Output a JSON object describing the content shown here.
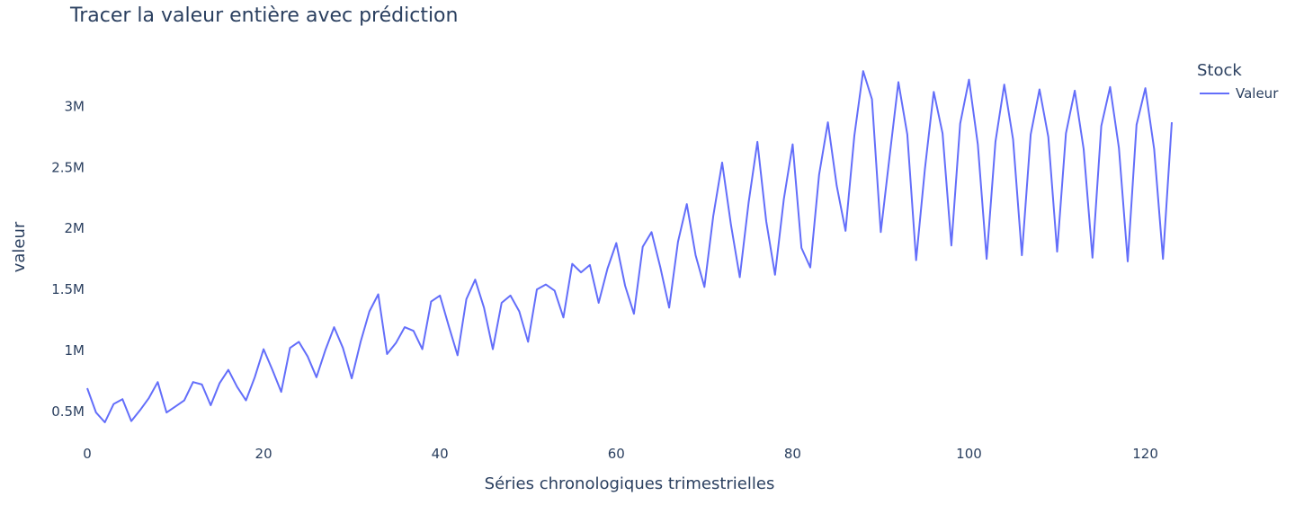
{
  "chart_data": {
    "type": "line",
    "title": "Tracer la valeur entière avec prédiction",
    "xlabel": "Séries chronologiques trimestrielles",
    "ylabel": "valeur",
    "xlim": [
      0,
      123
    ],
    "ylim": [
      270000,
      3350000
    ],
    "grid": false,
    "legend": {
      "title": "Stock",
      "placement": "top-right"
    },
    "x_ticks": [
      0,
      20,
      40,
      60,
      80,
      100,
      120
    ],
    "x_tick_labels": [
      "0",
      "20",
      "40",
      "60",
      "80",
      "100",
      "120"
    ],
    "y_ticks": [
      500000,
      1000000,
      1500000,
      2000000,
      2500000,
      3000000
    ],
    "y_tick_labels": [
      "0.5M",
      "1M",
      "1.5M",
      "2M",
      "2.5M",
      "3M"
    ],
    "series": [
      {
        "name": "Valeur",
        "color": "#636efa",
        "x": [
          0,
          1,
          2,
          3,
          4,
          5,
          6,
          7,
          8,
          9,
          10,
          11,
          12,
          13,
          14,
          15,
          16,
          17,
          18,
          19,
          20,
          21,
          22,
          23,
          24,
          25,
          26,
          27,
          28,
          29,
          30,
          31,
          32,
          33,
          34,
          35,
          36,
          37,
          38,
          39,
          40,
          41,
          42,
          43,
          44,
          45,
          46,
          47,
          48,
          49,
          50,
          51,
          52,
          53,
          54,
          55,
          56,
          57,
          58,
          59,
          60,
          61,
          62,
          63,
          64,
          65,
          66,
          67,
          68,
          69,
          70,
          71,
          72,
          73,
          74,
          75,
          76,
          77,
          78,
          79,
          80,
          81,
          82,
          83,
          84,
          85,
          86,
          87,
          88,
          89,
          90,
          91,
          92,
          93,
          94,
          95,
          96,
          97,
          98,
          99,
          100,
          101,
          102,
          103,
          104,
          105,
          106,
          107,
          108,
          109,
          110,
          111,
          112,
          113,
          114,
          115,
          116,
          117,
          118,
          119,
          120,
          121,
          122,
          123
        ],
        "values": [
          690000,
          490000,
          410000,
          560000,
          600000,
          420000,
          510000,
          610000,
          740000,
          490000,
          540000,
          590000,
          740000,
          720000,
          550000,
          730000,
          840000,
          700000,
          590000,
          780000,
          1010000,
          840000,
          660000,
          1020000,
          1070000,
          950000,
          780000,
          1000000,
          1190000,
          1020000,
          770000,
          1070000,
          1320000,
          1460000,
          970000,
          1060000,
          1190000,
          1160000,
          1010000,
          1400000,
          1450000,
          1200000,
          960000,
          1420000,
          1580000,
          1350000,
          1010000,
          1390000,
          1450000,
          1320000,
          1070000,
          1500000,
          1540000,
          1490000,
          1270000,
          1710000,
          1640000,
          1700000,
          1390000,
          1670000,
          1880000,
          1530000,
          1300000,
          1850000,
          1970000,
          1680000,
          1350000,
          1890000,
          2200000,
          1780000,
          1520000,
          2100000,
          2540000,
          2030000,
          1600000,
          2210000,
          2710000,
          2060000,
          1620000,
          2240000,
          2690000,
          1840000,
          1680000,
          2440000,
          2870000,
          2350000,
          1980000,
          2760000,
          3290000,
          3060000,
          1970000,
          2590000,
          3200000,
          2770000,
          1740000,
          2490000,
          3120000,
          2780000,
          1860000,
          2860000,
          3220000,
          2690000,
          1750000,
          2710000,
          3180000,
          2730000,
          1780000,
          2770000,
          3140000,
          2750000,
          1810000,
          2780000,
          3130000,
          2650000,
          1760000,
          2840000,
          3160000,
          2660000,
          1730000,
          2850000,
          3150000,
          2650000,
          1750000,
          2870000
        ]
      }
    ]
  }
}
